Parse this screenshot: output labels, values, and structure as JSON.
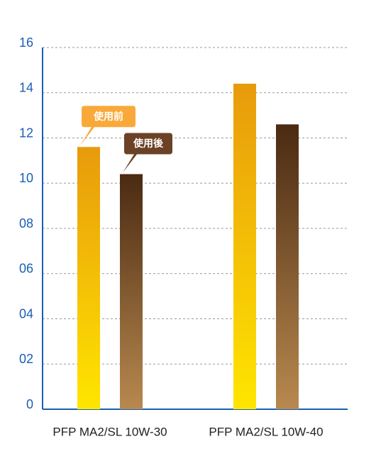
{
  "chart_data": {
    "type": "bar",
    "categories": [
      "PFP MA2/SL 10W-30",
      "PFP MA2/SL 10W-40"
    ],
    "series": [
      {
        "name": "使用前",
        "color": "#e89a0c",
        "values": [
          11.6,
          14.4
        ]
      },
      {
        "name": "使用後",
        "color": "#4a2a12",
        "values": [
          10.4,
          12.6
        ]
      }
    ],
    "ylim": [
      0,
      16
    ],
    "yticks": [
      0,
      {
        "value": 2,
        "label": "02"
      },
      {
        "value": 4,
        "label": "04"
      },
      {
        "value": 6,
        "label": "06"
      },
      {
        "value": 8,
        "label": "08"
      },
      10,
      12,
      14,
      16
    ],
    "grid": true
  }
}
